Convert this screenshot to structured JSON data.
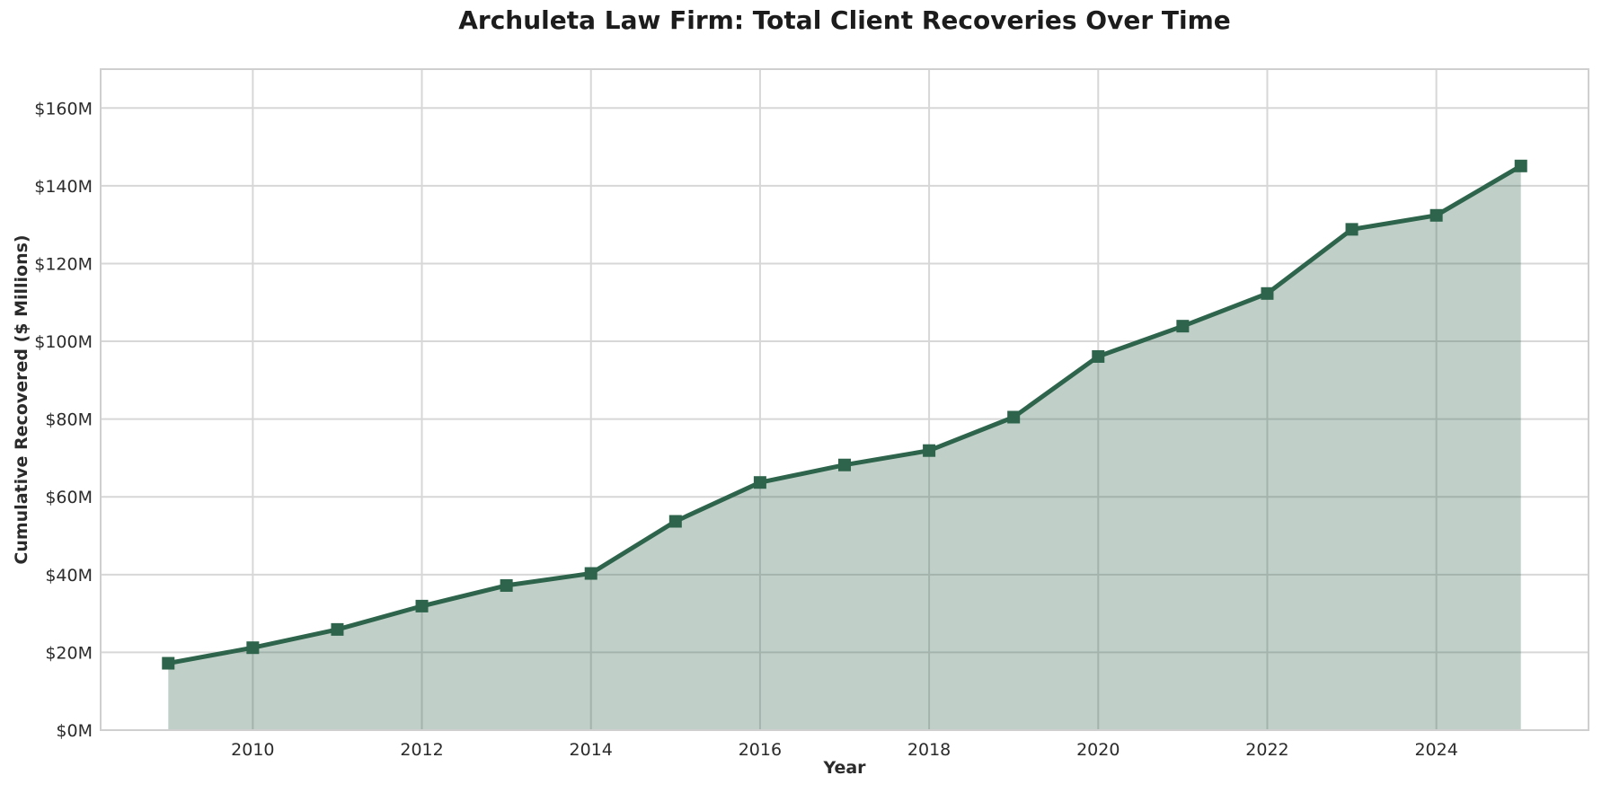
{
  "chart_data": {
    "type": "area",
    "title": "Archuleta Law Firm: Total Client Recoveries Over Time",
    "xlabel": "Year",
    "ylabel": "Cumulative Recovered ($ Millions)",
    "x": [
      2009,
      2010,
      2011,
      2012,
      2013,
      2014,
      2015,
      2016,
      2017,
      2018,
      2019,
      2020,
      2021,
      2022,
      2023,
      2024,
      2025
    ],
    "series": [
      {
        "name": "Cumulative Recovered",
        "values": [
          17.2,
          21.2,
          25.9,
          31.9,
          37.2,
          40.3,
          53.7,
          63.7,
          68.2,
          71.9,
          80.5,
          96.1,
          103.9,
          112.3,
          128.8,
          132.4,
          145.1
        ]
      }
    ],
    "xlim": [
      2008.2,
      2025.8
    ],
    "ylim": [
      0,
      170
    ],
    "xticks": [
      2010,
      2012,
      2014,
      2016,
      2018,
      2020,
      2022,
      2024
    ],
    "yticks": [
      0,
      20,
      40,
      60,
      80,
      100,
      120,
      140,
      160
    ],
    "ytick_labels": [
      "$0M",
      "$20M",
      "$40M",
      "$60M",
      "$80M",
      "$100M",
      "$120M",
      "$140M",
      "$160M"
    ],
    "grid": true,
    "legend": "none",
    "marker": "square",
    "colors": {
      "line": "#2d644b",
      "fill": "#2d644b",
      "fill_opacity": 0.3,
      "grid": "#d7d7d7",
      "spine": "#cfcfcf",
      "tick_text": "#2b2b2b",
      "title_text": "#1c1c1c",
      "background": "#ffffff"
    }
  }
}
